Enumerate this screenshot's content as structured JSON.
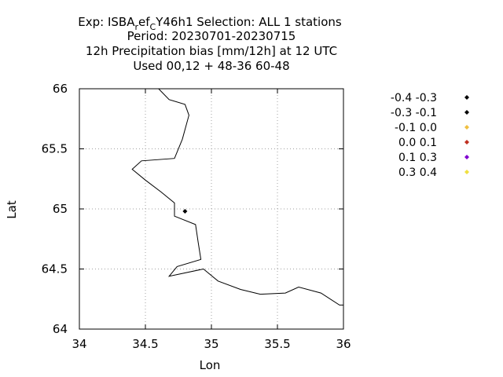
{
  "title": {
    "line1_prefix": "Exp: ISBA",
    "line1_sub1": "r",
    "line1_mid": "ef",
    "line1_sub2": "C",
    "line1_suffix": "Y46h1   Selection: ALL      1 stations",
    "line2": "Period: 20230701-20230715",
    "line3": "12h Precipitation bias [mm/12h] at  12 UTC",
    "line4": "Used  00,12  + 48-36 60-48"
  },
  "chart_data": {
    "type": "scatter",
    "xlabel": "Lon",
    "ylabel": "Lat",
    "xlim": [
      34,
      36
    ],
    "ylim": [
      64,
      66
    ],
    "xticks": [
      34,
      34.5,
      35,
      35.5,
      36
    ],
    "xtick_labels": [
      "34",
      "34.5",
      "35",
      "35.5",
      "36"
    ],
    "yticks": [
      64,
      64.5,
      65,
      65.5,
      66
    ],
    "ytick_labels": [
      "64",
      "64.5",
      "65",
      "65.5",
      "66"
    ],
    "grid": true,
    "legend_position": "right",
    "legend": [
      {
        "label": "-0.4 -0.3",
        "color": "#000000"
      },
      {
        "label": "-0.3 -0.1",
        "color": "#000000"
      },
      {
        "label": "-0.1 0.0",
        "color": "#f0c040"
      },
      {
        "label": "0.0 0.1",
        "color": "#c03020"
      },
      {
        "label": "0.1 0.3",
        "color": "#8000d0"
      },
      {
        "label": "0.3 0.4",
        "color": "#f0e040"
      }
    ],
    "points": [
      {
        "lon": 34.8,
        "lat": 64.98,
        "color": "#000000"
      }
    ],
    "coastline": [
      [
        34.6,
        66.0
      ],
      [
        34.68,
        65.91
      ],
      [
        34.8,
        65.87
      ],
      [
        34.83,
        65.78
      ],
      [
        34.78,
        65.58
      ],
      [
        34.72,
        65.42
      ],
      [
        34.47,
        65.4
      ],
      [
        34.4,
        65.33
      ],
      [
        34.5,
        65.24
      ],
      [
        34.62,
        65.14
      ],
      [
        34.72,
        65.05
      ],
      [
        34.72,
        64.94
      ],
      [
        34.88,
        64.87
      ],
      [
        34.9,
        64.72
      ],
      [
        34.92,
        64.58
      ],
      [
        34.74,
        64.52
      ],
      [
        34.68,
        64.44
      ],
      [
        34.94,
        64.5
      ],
      [
        35.05,
        64.4
      ],
      [
        35.22,
        64.33
      ],
      [
        35.37,
        64.29
      ],
      [
        35.56,
        64.3
      ],
      [
        35.66,
        64.35
      ],
      [
        35.83,
        64.3
      ],
      [
        35.97,
        64.2
      ],
      [
        36.0,
        64.2
      ]
    ]
  }
}
